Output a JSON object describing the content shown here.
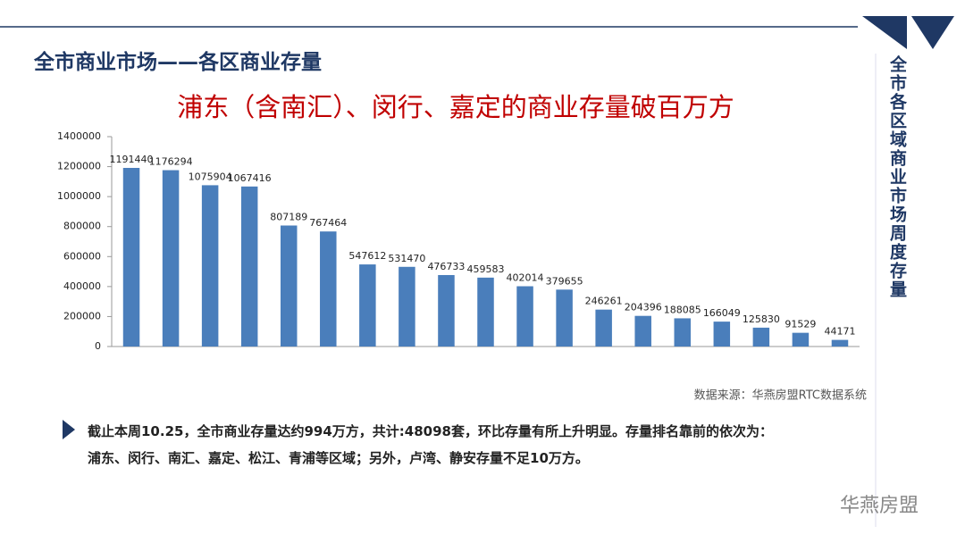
{
  "header": {
    "title": "全市商业市场——各区商业存量",
    "side_title": "全市各区域商业市场周度存量"
  },
  "chart_data": {
    "type": "bar",
    "title": "浦东（含南汇）、闵行、嘉定的商业存量破百万方",
    "values": [
      1191440,
      1176294,
      1075904,
      1067416,
      807189,
      767464,
      547612,
      531470,
      476733,
      459583,
      402014,
      379655,
      246261,
      204396,
      188085,
      166049,
      125830,
      91529,
      44171
    ],
    "color": "#4a7ebb",
    "ylim": [
      0,
      1400000
    ],
    "yticks": [
      0,
      200000,
      400000,
      600000,
      800000,
      1000000,
      1200000,
      1400000
    ],
    "grid": false
  },
  "source": "数据来源：华燕房盟RTC数据系统",
  "bullet": {
    "lines": [
      "截止本周10.25，全市商业存量达约994万方，共计:48098套，环比存量有所上升明显。存量排名靠前的依次为：",
      "浦东、闵行、南汇、嘉定、松江、青浦等区域；另外，卢湾、静安存量不足10万方。"
    ]
  },
  "footer": {
    "brand": "华燕房盟"
  }
}
